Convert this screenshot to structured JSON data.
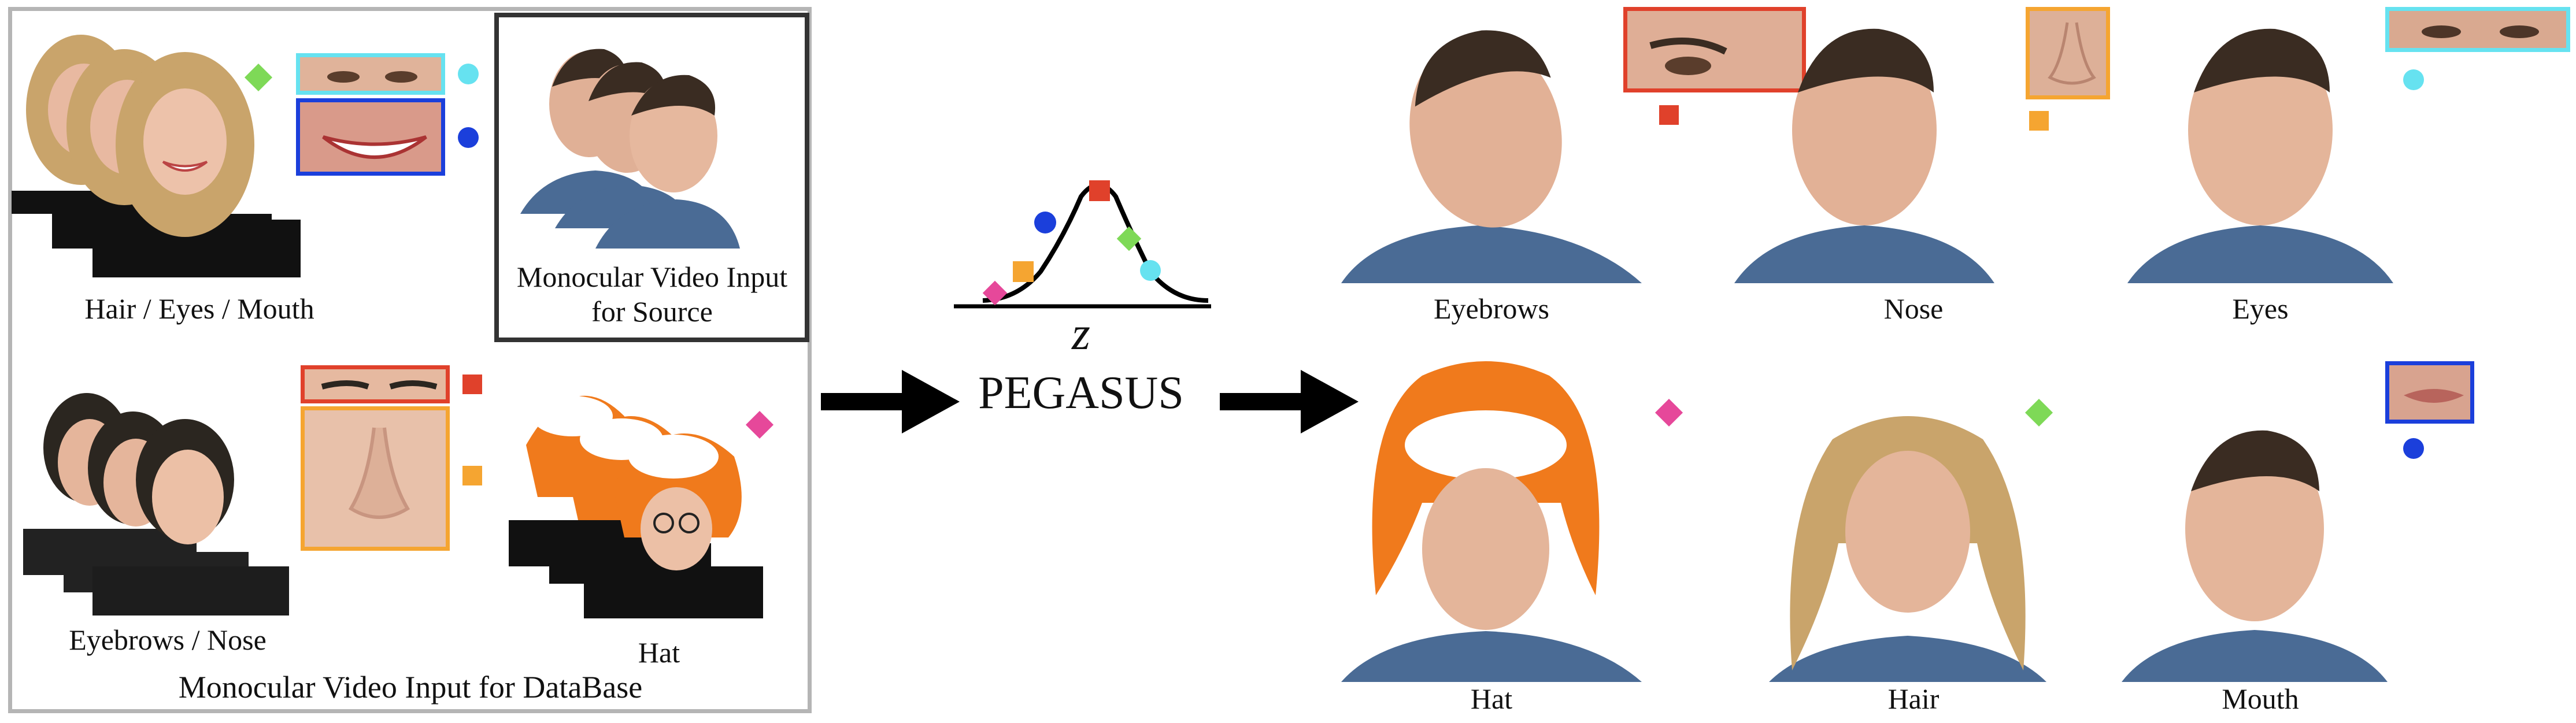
{
  "colors": {
    "red": "#e0412b",
    "orange": "#f5a531",
    "blue": "#1b3fdb",
    "cyan": "#66e2f0",
    "green": "#7ed957",
    "pink": "#e6489a",
    "db_border": "#b5b5b5",
    "source_border": "#333333",
    "skin": "#e8b9a1",
    "shirt": "#4a6b95",
    "hat_orange": "#f07a1c",
    "hair_blonde": "#c9a46b",
    "hair_dark": "#2b2620"
  },
  "database_panel": {
    "label": "Monocular Video Input for DataBase",
    "groups": [
      {
        "label": "Hair / Eyes / Mouth",
        "markers": [
          "green-diamond",
          "cyan-dot",
          "blue-dot"
        ]
      },
      {
        "label": "Eyebrows / Nose",
        "markers": [
          "red-square",
          "orange-square"
        ]
      },
      {
        "label": "Hat",
        "markers": [
          "pink-diamond"
        ]
      }
    ]
  },
  "source_panel": {
    "label_line1": "Monocular Video Input",
    "label_line2": "for Source"
  },
  "center": {
    "latent_symbol": "z",
    "model_name": "PEGASUS"
  },
  "results": [
    {
      "label": "Eyebrows",
      "marker": "red-square"
    },
    {
      "label": "Nose",
      "marker": "orange-square"
    },
    {
      "label": "Eyes",
      "marker": "cyan-dot"
    },
    {
      "label": "Hat",
      "marker": "pink-diamond"
    },
    {
      "label": "Hair",
      "marker": "green-diamond"
    },
    {
      "label": "Mouth",
      "marker": "blue-dot"
    }
  ]
}
